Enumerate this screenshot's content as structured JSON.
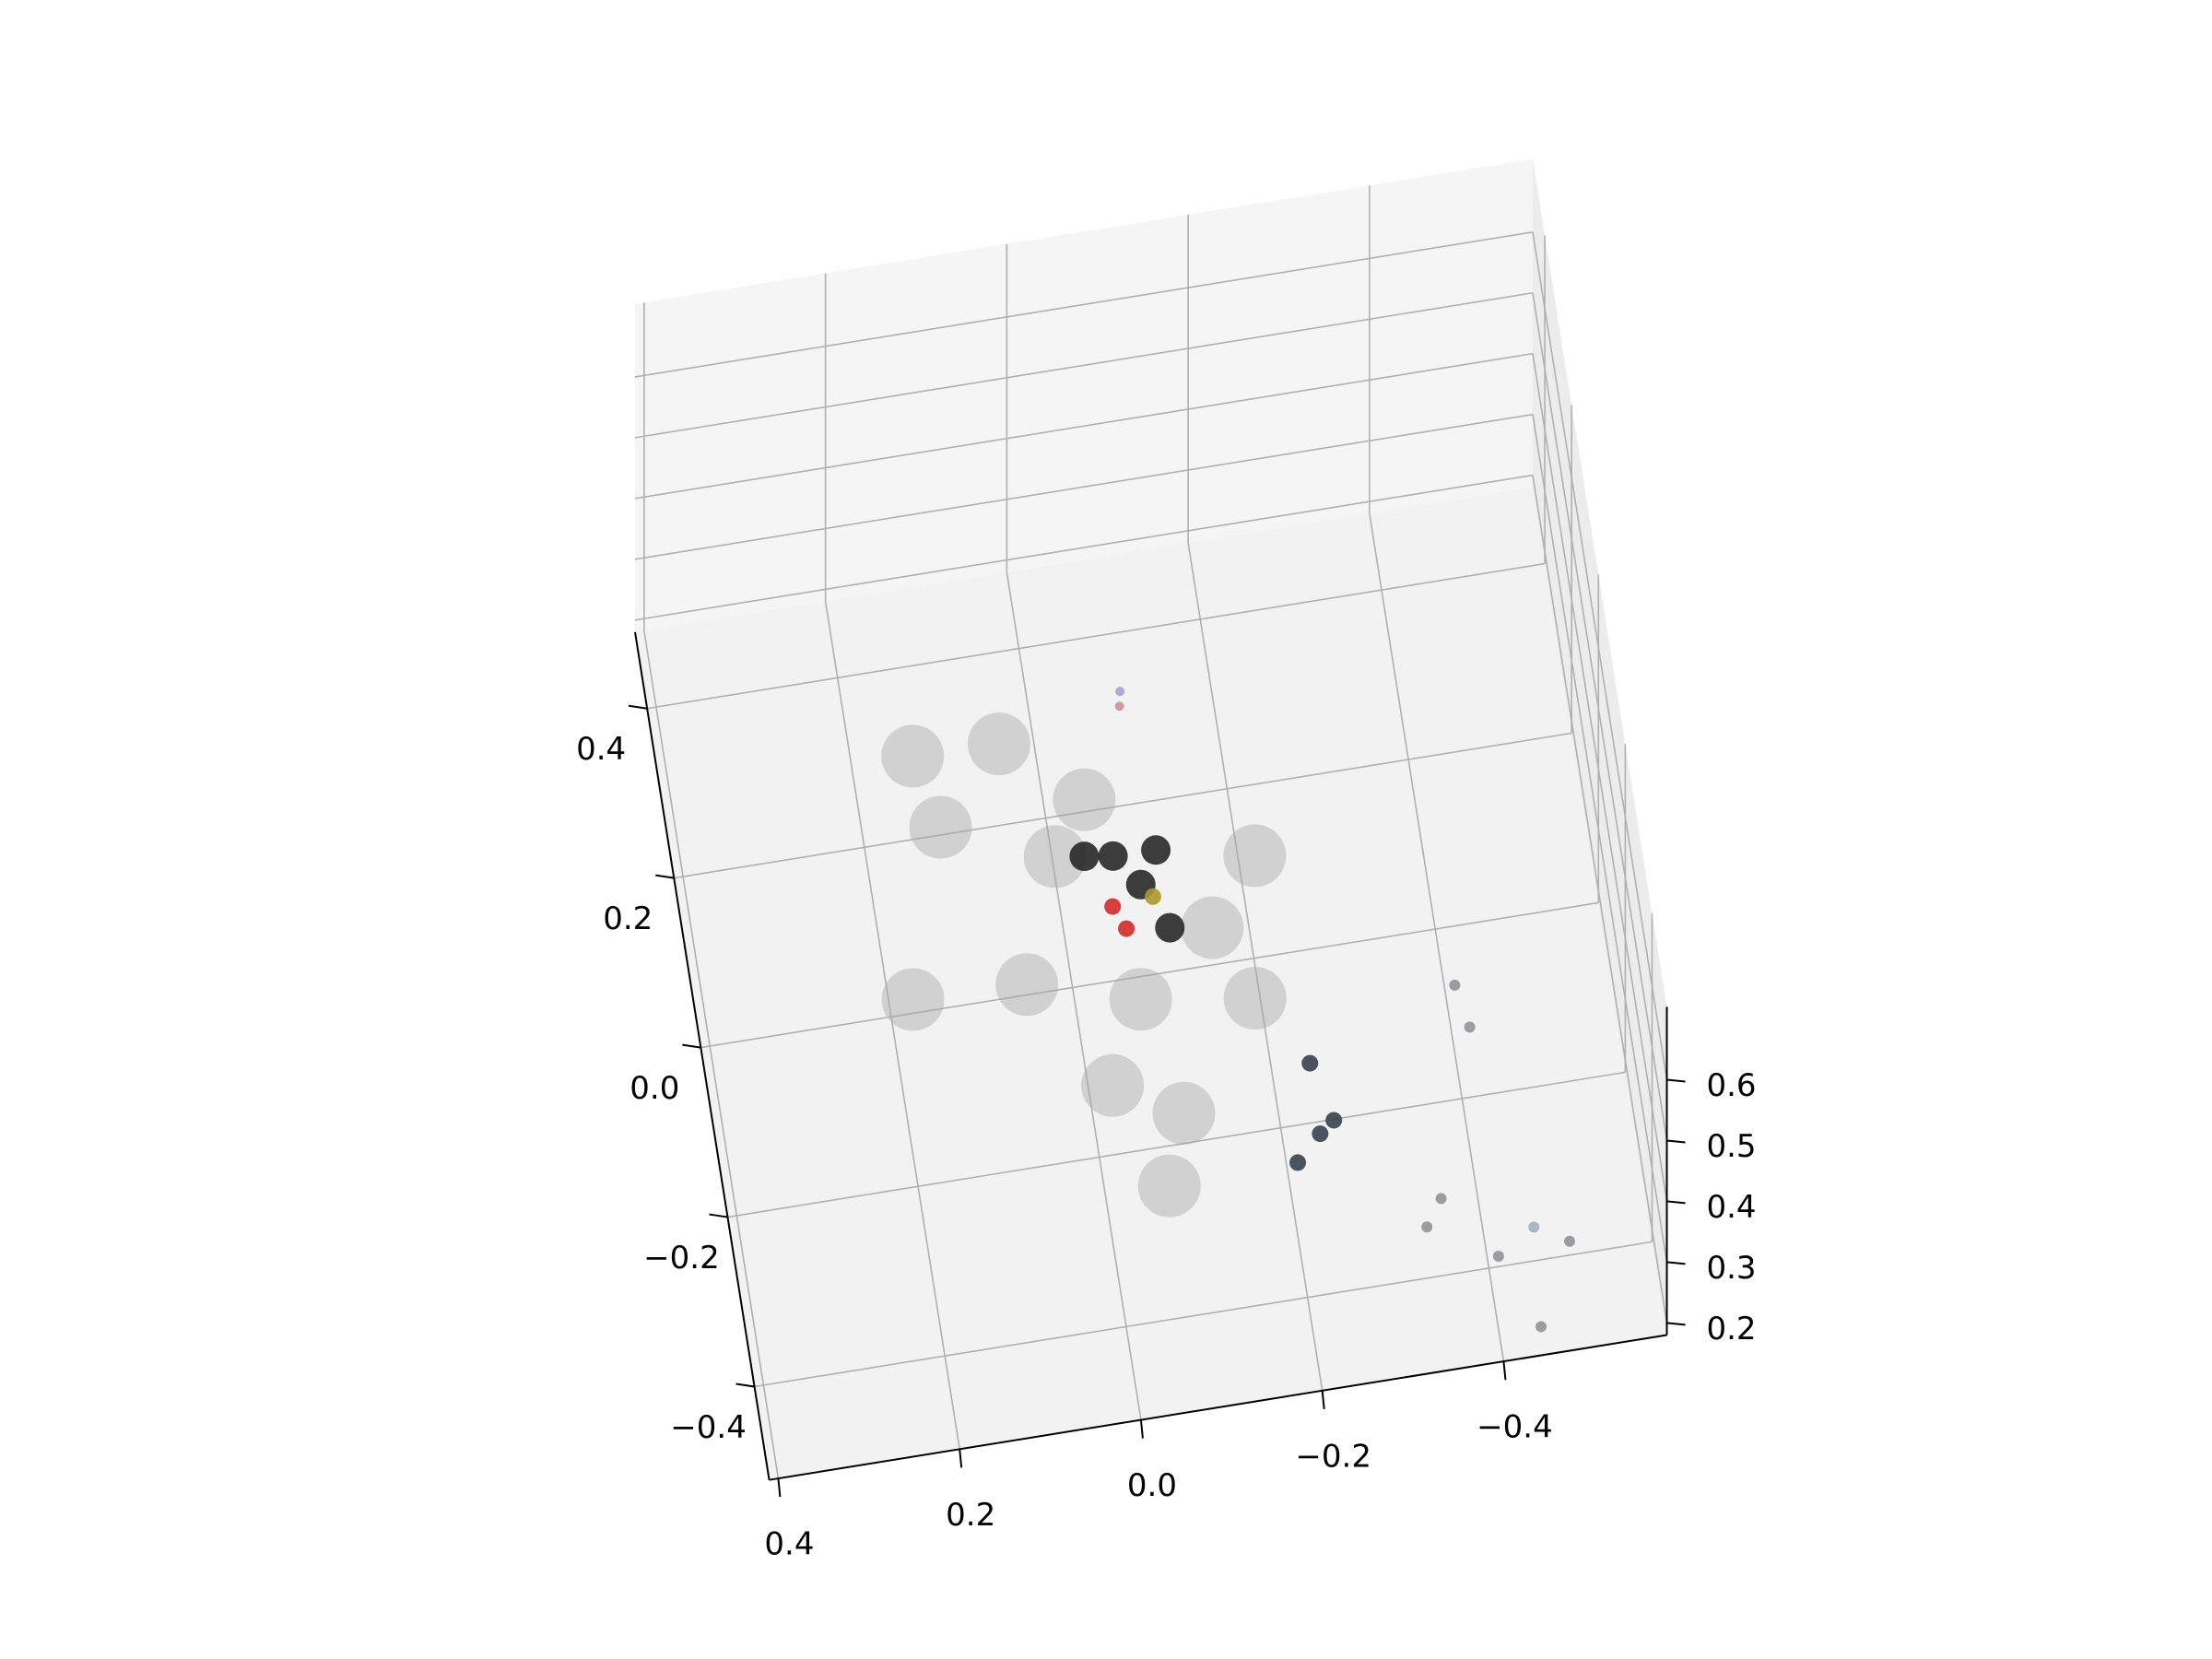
{
  "chart_data": {
    "type": "scatter3d",
    "xlim": [
      -0.58,
      0.41
    ],
    "ylim": [
      -0.51,
      0.49
    ],
    "zlim": [
      0.18,
      0.72
    ],
    "xticks": [
      {
        "value": -0.4,
        "label": "−0.4"
      },
      {
        "value": -0.2,
        "label": "−0.2"
      },
      {
        "value": 0,
        "label": "0.0"
      },
      0.2,
      0.4
    ],
    "yticks": [
      {
        "value": -0.4,
        "label": "−0.4"
      },
      {
        "value": -0.2,
        "label": "−0.2"
      },
      {
        "value": 0,
        "label": "0.0"
      },
      0.2,
      0.4
    ],
    "zticks": [
      0.2,
      0.3,
      0.4,
      0.5,
      0.6
    ],
    "grid": true,
    "series": [
      {
        "color": "#a8a8a8",
        "x": [
          0.05,
          0.127,
          0.011,
          0.061,
          -0.059,
          -0.146,
          -0.182,
          -0.088,
          -0.06,
          -0.029,
          0.184,
          -0.206,
          -0.016,
          0.145
        ],
        "y": [
          0.21,
          0.125,
          0.056,
          -0.072,
          -0.11,
          -0.055,
          -0.13,
          -0.235,
          -0.316,
          0.109,
          -0.054,
          0.034,
          -0.19,
          0.212
        ],
        "z": [
          0.3,
          0.3,
          0.32,
          0.3,
          0.3,
          0.32,
          0.3,
          0.28,
          0.28,
          0.33,
          0.28,
          0.3,
          0.28,
          0.3
        ]
      },
      {
        "color": "#1c1c1c",
        "x": [
          -0.038,
          -0.063,
          -0.09,
          -0.007,
          -0.083
        ],
        "y": [
          -0.045,
          -0.083,
          -0.117,
          -0.04,
          -0.06
        ],
        "z": [
          0.45,
          0.45,
          0.42,
          0.45,
          0.47
        ]
      },
      {
        "color": "#d42a2a",
        "x": [
          -0.03,
          -0.042
        ],
        "y": [
          -0.096,
          -0.117
        ],
        "z": [
          0.44,
          0.43
        ]
      },
      {
        "color": "#a89a2a",
        "x": [
          -0.075
        ],
        "y": [
          -0.092
        ],
        "z": [
          0.44
        ]
      },
      {
        "color": "#2e3844",
        "x": [
          -0.229,
          -0.2,
          -0.246,
          -0.23
        ],
        "y": [
          -0.298,
          -0.327,
          -0.285,
          -0.215
        ],
        "z": [
          0.3,
          0.3,
          0.3,
          0.3
        ]
      },
      {
        "color": "#75797f",
        "x": [
          -0.328,
          -0.348,
          -0.4,
          -0.442,
          -0.479,
          -0.399,
          -0.408
        ],
        "y": [
          -0.425,
          -0.395,
          -0.472,
          -0.505,
          -0.468,
          -0.152,
          -0.203
        ],
        "z": [
          0.3,
          0.3,
          0.3,
          0.22,
          0.3,
          0.3,
          0.3
        ]
      },
      {
        "color": "#8aa0b8",
        "x": [
          -0.443
        ],
        "y": [
          -0.445
        ],
        "z": [
          0.3
        ]
      },
      {
        "color": "#c08a8a",
        "x": [
          -0.086
        ],
        "y": [
          0.231
        ],
        "z": [
          0.3
        ]
      },
      {
        "color": "#9a9ad0",
        "x": [
          -0.089
        ],
        "y": [
          0.248
        ],
        "z": [
          0.3
        ]
      }
    ]
  }
}
